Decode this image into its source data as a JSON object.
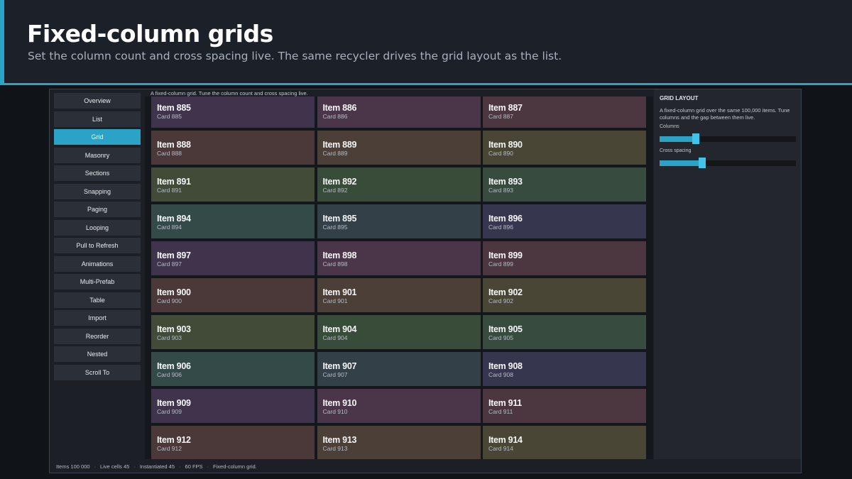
{
  "header": {
    "title": "Fixed-column grids",
    "subtitle": "Set the column count and cross spacing live. The same recycler drives the grid layout as the list."
  },
  "nav": {
    "items": [
      {
        "label": "Overview",
        "active": false
      },
      {
        "label": "List",
        "active": false
      },
      {
        "label": "Grid",
        "active": true
      },
      {
        "label": "Masonry",
        "active": false
      },
      {
        "label": "Sections",
        "active": false
      },
      {
        "label": "Snapping",
        "active": false
      },
      {
        "label": "Paging",
        "active": false
      },
      {
        "label": "Looping",
        "active": false
      },
      {
        "label": "Pull to Refresh",
        "active": false
      },
      {
        "label": "Animations",
        "active": false
      },
      {
        "label": "Multi-Prefab",
        "active": false
      },
      {
        "label": "Table",
        "active": false
      },
      {
        "label": "Import",
        "active": false
      },
      {
        "label": "Reorder",
        "active": false
      },
      {
        "label": "Nested",
        "active": false
      },
      {
        "label": "Scroll To",
        "active": false
      }
    ]
  },
  "content": {
    "caption": "A fixed-column grid. Tune the column count and cross spacing live.",
    "top_partial_colors": [
      "#2f3b3a",
      "#33394a",
      "#363352"
    ],
    "cards": [
      {
        "name": "Item 885",
        "sub": "Card 885",
        "color": "#40344c"
      },
      {
        "name": "Item 886",
        "sub": "Card 886",
        "color": "#4a3549"
      },
      {
        "name": "Item 887",
        "sub": "Card 887",
        "color": "#4c363f"
      },
      {
        "name": "Item 888",
        "sub": "Card 888",
        "color": "#4b3839"
      },
      {
        "name": "Item 889",
        "sub": "Card 889",
        "color": "#4b3f38"
      },
      {
        "name": "Item 890",
        "sub": "Card 890",
        "color": "#4a4636"
      },
      {
        "name": "Item 891",
        "sub": "Card 891",
        "color": "#414b38"
      },
      {
        "name": "Item 892",
        "sub": "Card 892",
        "color": "#394c39"
      },
      {
        "name": "Item 893",
        "sub": "Card 893",
        "color": "#374b3e"
      },
      {
        "name": "Item 894",
        "sub": "Card 894",
        "color": "#344a49"
      },
      {
        "name": "Item 895",
        "sub": "Card 895",
        "color": "#344048"
      },
      {
        "name": "Item 896",
        "sub": "Card 896",
        "color": "#37364f"
      },
      {
        "name": "Item 897",
        "sub": "Card 897",
        "color": "#40344c"
      },
      {
        "name": "Item 898",
        "sub": "Card 898",
        "color": "#4a3549"
      },
      {
        "name": "Item 899",
        "sub": "Card 899",
        "color": "#4c363f"
      },
      {
        "name": "Item 900",
        "sub": "Card 900",
        "color": "#4b3839"
      },
      {
        "name": "Item 901",
        "sub": "Card 901",
        "color": "#4b3f38"
      },
      {
        "name": "Item 902",
        "sub": "Card 902",
        "color": "#4a4636"
      },
      {
        "name": "Item 903",
        "sub": "Card 903",
        "color": "#414b38"
      },
      {
        "name": "Item 904",
        "sub": "Card 904",
        "color": "#394c39"
      },
      {
        "name": "Item 905",
        "sub": "Card 905",
        "color": "#374b3e"
      },
      {
        "name": "Item 906",
        "sub": "Card 906",
        "color": "#344a49"
      },
      {
        "name": "Item 907",
        "sub": "Card 907",
        "color": "#344048"
      },
      {
        "name": "Item 908",
        "sub": "Card 908",
        "color": "#37364f"
      },
      {
        "name": "Item 909",
        "sub": "Card 909",
        "color": "#40344c"
      },
      {
        "name": "Item 910",
        "sub": "Card 910",
        "color": "#4a3549"
      },
      {
        "name": "Item 911",
        "sub": "Card 911",
        "color": "#4c363f"
      },
      {
        "name": "Item 912",
        "sub": "Card 912",
        "color": "#4b3839"
      },
      {
        "name": "Item 913",
        "sub": "Card 913",
        "color": "#4b3f38"
      },
      {
        "name": "Item 914",
        "sub": "Card 914",
        "color": "#4a4636"
      }
    ]
  },
  "panel": {
    "title": "GRID LAYOUT",
    "description": "A fixed-column grid over the same 100,000 items. Tune columns and the gap between them live.",
    "columns_label": "Columns",
    "columns_fraction": 0.265,
    "spacing_label": "Cross spacing",
    "spacing_fraction": 0.31
  },
  "status": {
    "items": "Items 100 000",
    "live": "Live cells 45",
    "instantiated": "Instantiated 45",
    "fps": "60 FPS",
    "mode": "Fixed-column grid."
  },
  "colors": {
    "accent": "#2aa3c7",
    "knob": "#42c4e9"
  }
}
